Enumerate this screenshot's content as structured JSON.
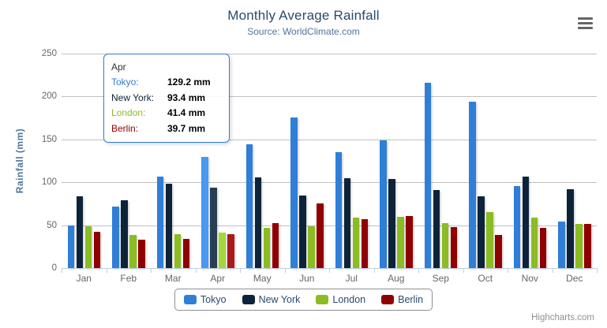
{
  "chart": {
    "title": "Monthly Average Rainfall",
    "subtitle": "Source: WorldClimate.com",
    "y_axis_title": "Rainfall (mm)",
    "credits": "Highcharts.com"
  },
  "colors": {
    "tokyo": "#2f7ed8",
    "new_york": "#0d233a",
    "london": "#8bbc21",
    "berlin": "#910000",
    "title_text": "#274b6d",
    "subtitle_text": "#4d759e",
    "axis_label_text": "#666666",
    "gridline": "#c0c0c0",
    "axis_line": "#c0d0e0",
    "legend_border": "#909090",
    "tooltip_border": "#2f7ed8"
  },
  "chart_data": {
    "type": "bar",
    "title": "Monthly Average Rainfall",
    "subtitle": "Source: WorldClimate.com",
    "xlabel": "",
    "ylabel": "Rainfall (mm)",
    "ylim": [
      0,
      250
    ],
    "y_ticks": [
      0,
      50,
      100,
      150,
      200,
      250
    ],
    "grid": true,
    "legend_position": "bottom",
    "categories": [
      "Jan",
      "Feb",
      "Mar",
      "Apr",
      "May",
      "Jun",
      "Jul",
      "Aug",
      "Sep",
      "Oct",
      "Nov",
      "Dec"
    ],
    "series": [
      {
        "name": "Tokyo",
        "color": "#2f7ed8",
        "values": [
          49.9,
          71.5,
          106.4,
          129.2,
          144.0,
          176.0,
          135.6,
          148.5,
          216.4,
          194.1,
          95.6,
          54.4
        ]
      },
      {
        "name": "New York",
        "color": "#0d233a",
        "values": [
          83.6,
          78.8,
          98.5,
          93.4,
          106.0,
          84.5,
          105.0,
          104.3,
          91.2,
          83.5,
          106.6,
          92.3
        ]
      },
      {
        "name": "London",
        "color": "#8bbc21",
        "values": [
          48.9,
          38.8,
          39.3,
          41.4,
          47.0,
          48.3,
          59.0,
          59.6,
          52.4,
          65.2,
          59.3,
          51.2
        ]
      },
      {
        "name": "Berlin",
        "color": "#910000",
        "values": [
          42.4,
          33.2,
          34.5,
          39.7,
          52.6,
          75.5,
          57.4,
          60.4,
          47.6,
          39.1,
          46.8,
          51.1
        ]
      }
    ],
    "hovered_category": "Apr",
    "hovered_category_index": 3
  },
  "tooltip": {
    "header": "Apr",
    "border_color": "#2f7ed8",
    "rows": [
      {
        "label": "Tokyo:",
        "value": "129.2 mm",
        "color": "#2f7ed8"
      },
      {
        "label": "New York:",
        "value": "93.4 mm",
        "color": "#0d233a"
      },
      {
        "label": "London:",
        "value": "41.4 mm",
        "color": "#8bbc21"
      },
      {
        "label": "Berlin:",
        "value": "39.7 mm",
        "color": "#910000"
      }
    ]
  },
  "legend": {
    "items": [
      {
        "label": "Tokyo",
        "color": "#2f7ed8"
      },
      {
        "label": "New York",
        "color": "#0d233a"
      },
      {
        "label": "London",
        "color": "#8bbc21"
      },
      {
        "label": "Berlin",
        "color": "#910000"
      }
    ]
  }
}
